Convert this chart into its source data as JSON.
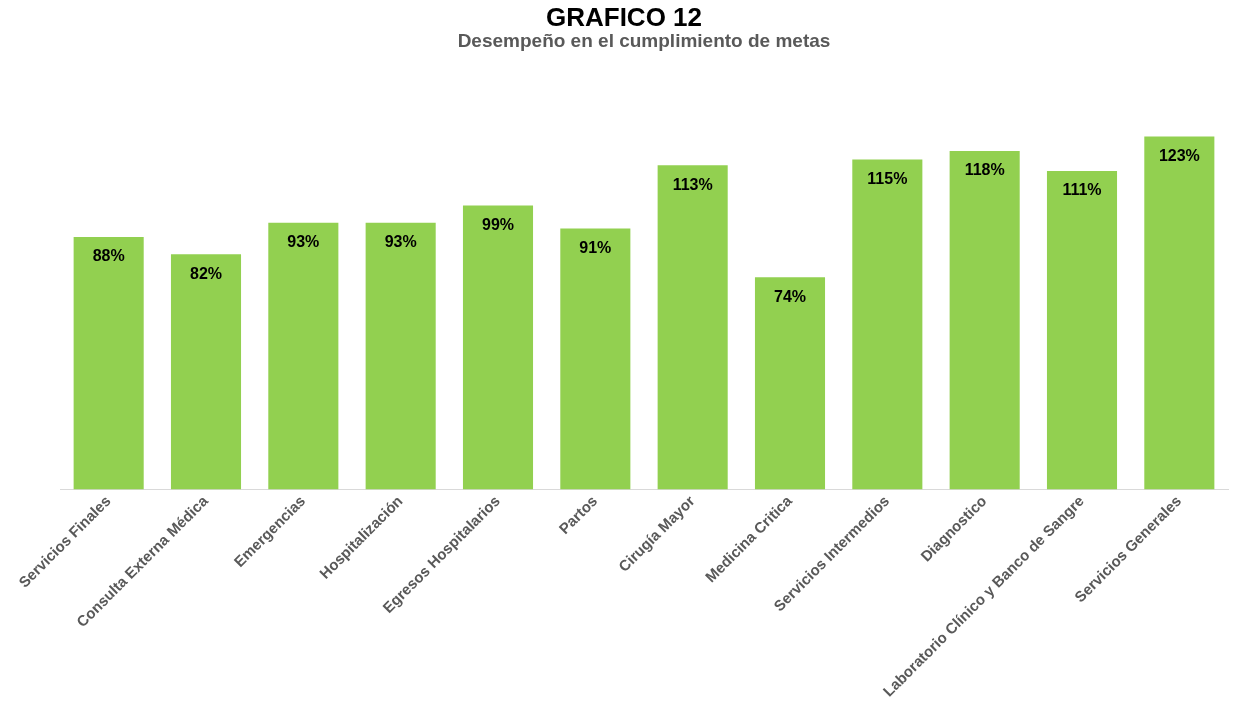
{
  "chart_data": {
    "type": "bar",
    "title": "Desempeño en el cumplimiento de metas",
    "annotations": [
      "GRAFICO 12"
    ],
    "categories": [
      "Servicios Finales",
      "Consulta Externa Médica",
      "Emergencias",
      "Hospitalización",
      "Egresos Hospitalarios",
      "Partos",
      "Cirugía Mayor",
      "Medicina Critica",
      "Servicios Intermedios",
      "Diagnostico",
      "Laboratorio Clínico y Banco de Sangre",
      "Servicios Generales"
    ],
    "values": [
      88,
      82,
      93,
      93,
      99,
      91,
      113,
      74,
      115,
      118,
      111,
      123
    ],
    "value_labels": [
      "88%",
      "82%",
      "93%",
      "93%",
      "99%",
      "91%",
      "113%",
      "74%",
      "115%",
      "118%",
      "111%",
      "123%"
    ],
    "color": "#92d050",
    "tick_labels": "x",
    "grid": false,
    "legend": false
  }
}
